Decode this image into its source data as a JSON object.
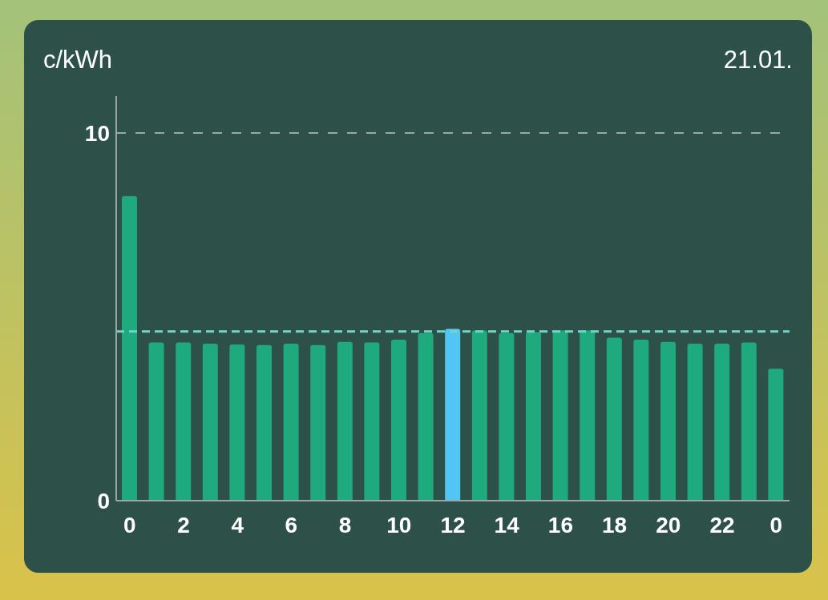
{
  "chart_data": {
    "type": "bar",
    "title": "c/kWh",
    "subtitle": "21.01.",
    "categories": [
      "0",
      null,
      "2",
      null,
      "4",
      null,
      "6",
      null,
      "8",
      null,
      "10",
      null,
      "12",
      null,
      "14",
      null,
      "16",
      null,
      "18",
      null,
      "20",
      null,
      "22",
      null,
      "0"
    ],
    "values": [
      8.28,
      4.3,
      4.3,
      4.27,
      4.25,
      4.23,
      4.27,
      4.23,
      4.32,
      4.3,
      4.38,
      4.56,
      4.67,
      4.63,
      4.56,
      4.58,
      4.63,
      4.63,
      4.43,
      4.38,
      4.32,
      4.27,
      4.27,
      4.3,
      3.59
    ],
    "colors": [
      "#1faa7e",
      "#1faa7e",
      "#1faa7e",
      "#1faa7e",
      "#1faa7e",
      "#1faa7e",
      "#1faa7e",
      "#1faa7e",
      "#1faa7e",
      "#1faa7e",
      "#1faa7e",
      "#1faa7e",
      "#52c6f2",
      "#1faa7e",
      "#1faa7e",
      "#1faa7e",
      "#1faa7e",
      "#1faa7e",
      "#1faa7e",
      "#1faa7e",
      "#1faa7e",
      "#1faa7e",
      "#1faa7e",
      "#1faa7e",
      "#1faa7e"
    ],
    "ylim": [
      0,
      11
    ],
    "yticks": [
      0,
      10
    ],
    "grid": "y",
    "ref_lines": [
      {
        "axis": "y",
        "value": 4.6,
        "color": "#6fd6c9",
        "line_style": "dashed"
      }
    ]
  }
}
